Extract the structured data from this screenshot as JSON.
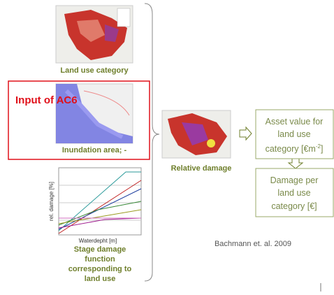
{
  "land_use": {
    "label": "Land use category"
  },
  "input_box": {
    "label": "Input of AC6"
  },
  "inundation": {
    "label": "Inundation area; -"
  },
  "stage_damage": {
    "y_label": "rel. damage [%]",
    "x_label": "Waterdepht [m]",
    "label_lines": [
      "Stage damage",
      "function",
      "corresponding to",
      "land use"
    ]
  },
  "relative_damage": {
    "label": "Relative damage"
  },
  "asset_value": {
    "lines": [
      "Asset value for",
      "land use",
      "category   [€m"
    ],
    "sup": "-2",
    "end": "]"
  },
  "damage": {
    "lines": [
      "Damage per",
      "land use",
      "category [€]"
    ]
  },
  "citation": "Bachmann et. al. 2009"
}
